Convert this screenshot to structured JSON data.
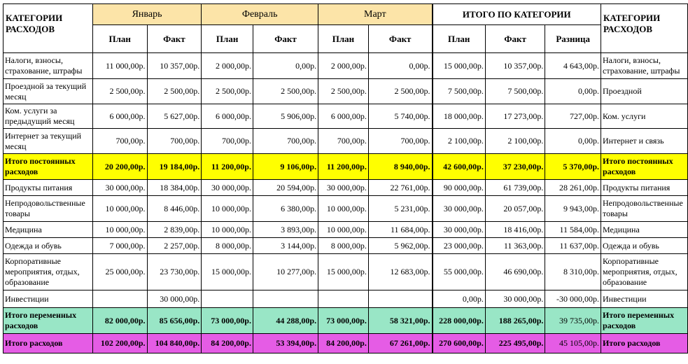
{
  "header": {
    "category_title": "КАТЕГОРИИ РАСХОДОВ",
    "months": [
      "Январь",
      "Февраль",
      "Март"
    ],
    "total_title": "ИТОГО ПО КАТЕГОРИИ",
    "plan": "План",
    "fact": "Факт",
    "diff": "Разница"
  },
  "rows": [
    {
      "left": "Налоги, взносы, страхование, штрафы",
      "v": [
        "11 000,00р.",
        "10 357,00р.",
        "2 000,00р.",
        "0,00р.",
        "2 000,00р.",
        "0,00р.",
        "15 000,00р.",
        "10 357,00р.",
        "4 643,00р."
      ],
      "right": "Налоги, взносы, страхование, штрафы",
      "type": "normal"
    },
    {
      "left": "Проездной за текущий месяц",
      "v": [
        "2 500,00р.",
        "2 500,00р.",
        "2 500,00р.",
        "2 500,00р.",
        "2 500,00р.",
        "2 500,00р.",
        "7 500,00р.",
        "7 500,00р.",
        "0,00р."
      ],
      "right": "Проездной",
      "type": "normal"
    },
    {
      "left": "Ком. услуги за предыдущий месяц",
      "v": [
        "6 000,00р.",
        "5 627,00р.",
        "6 000,00р.",
        "5 906,00р.",
        "6 000,00р.",
        "5 740,00р.",
        "18 000,00р.",
        "17 273,00р.",
        "727,00р."
      ],
      "right": "Ком. услуги",
      "type": "normal"
    },
    {
      "left": "Интернет за текущий месяц",
      "v": [
        "700,00р.",
        "700,00р.",
        "700,00р.",
        "700,00р.",
        "700,00р.",
        "700,00р.",
        "2 100,00р.",
        "2 100,00р.",
        "0,00р."
      ],
      "right": "Интернет и связь",
      "type": "normal"
    },
    {
      "left": "Итого постоянных расходов",
      "v": [
        "20 200,00р.",
        "19 184,00р.",
        "11 200,00р.",
        "9 106,00р.",
        "11 200,00р.",
        "8 940,00р.",
        "42 600,00р.",
        "37 230,00р.",
        "5 370,00р."
      ],
      "right": "Итого постоянных расходов",
      "type": "fixed"
    },
    {
      "left": "Продукты питания",
      "v": [
        "30 000,00р.",
        "18 384,00р.",
        "30 000,00р.",
        "20 594,00р.",
        "30 000,00р.",
        "22 761,00р.",
        "90 000,00р.",
        "61 739,00р.",
        "28 261,00р."
      ],
      "right": "Продукты питания",
      "type": "normal"
    },
    {
      "left": "Непродовольственные товары",
      "v": [
        "10 000,00р.",
        "8 446,00р.",
        "10 000,00р.",
        "6 380,00р.",
        "10 000,00р.",
        "5 231,00р.",
        "30 000,00р.",
        "20 057,00р.",
        "9 943,00р."
      ],
      "right": "Непродовольственные товары",
      "type": "normal"
    },
    {
      "left": "Медицина",
      "v": [
        "10 000,00р.",
        "2 839,00р.",
        "10 000,00р.",
        "3 893,00р.",
        "10 000,00р.",
        "11 684,00р.",
        "30 000,00р.",
        "18 416,00р.",
        "11 584,00р."
      ],
      "right": "Медицина",
      "type": "normal"
    },
    {
      "left": "Одежда и обувь",
      "v": [
        "7 000,00р.",
        "2 257,00р.",
        "8 000,00р.",
        "3 144,00р.",
        "8 000,00р.",
        "5 962,00р.",
        "23 000,00р.",
        "11 363,00р.",
        "11 637,00р."
      ],
      "right": "Одежда и обувь",
      "type": "normal"
    },
    {
      "left": "Корпоративные мероприятия, отдых, образование",
      "v": [
        "25 000,00р.",
        "23 730,00р.",
        "15 000,00р.",
        "10 277,00р.",
        "15 000,00р.",
        "12 683,00р.",
        "55 000,00р.",
        "46 690,00р.",
        "8 310,00р."
      ],
      "right": "Корпоративные мероприятия, отдых, образование",
      "type": "normal"
    },
    {
      "left": "Инвестиции",
      "v": [
        "",
        "30 000,00р.",
        "",
        "",
        "",
        "",
        "0,00р.",
        "30 000,00р.",
        "-30 000,00р."
      ],
      "right": "Инвестиции",
      "type": "normal"
    },
    {
      "left": "Итого переменных расходов",
      "v": [
        "82 000,00р.",
        "85 656,00р.",
        "73 000,00р.",
        "44 288,00р.",
        "73 000,00р.",
        "58 321,00р.",
        "228 000,00р.",
        "188 265,00р.",
        "39 735,00р."
      ],
      "right": "Итого переменных расходов",
      "type": "var"
    },
    {
      "left": "Итого расходов",
      "v": [
        "102 200,00р.",
        "104 840,00р.",
        "84 200,00р.",
        "53 394,00р.",
        "84 200,00р.",
        "67 261,00р.",
        "270 600,00р.",
        "225 495,00р.",
        "45 105,00р."
      ],
      "right": "Итого расходов",
      "type": "all"
    }
  ],
  "colors": {
    "month_header": "#fce4a8",
    "fixed_total": "#ffff00",
    "variable_total": "#99e6c6",
    "grand_total": "#e55ce5"
  }
}
